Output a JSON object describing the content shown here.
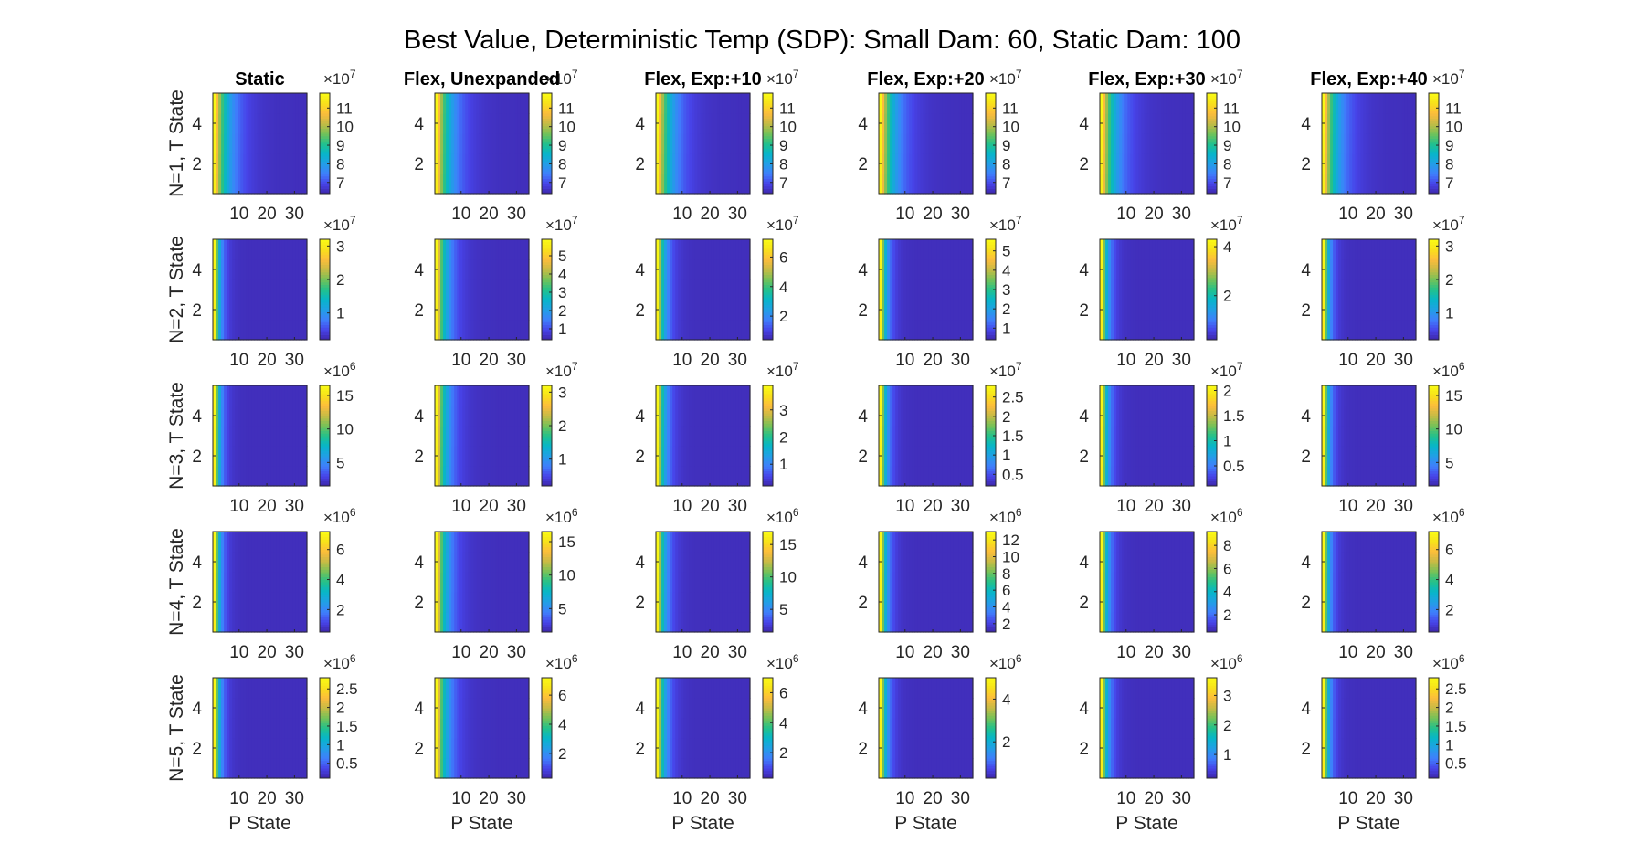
{
  "figure": {
    "title": "Best Value, Deterministic Temp (SDP): Small Dam: 60, Static Dam: 100"
  },
  "colormap": [
    "#3e26a8",
    "#4744e9",
    "#3f7ffc",
    "#219fe6",
    "#07b6c9",
    "#22c18b",
    "#74c258",
    "#c6bb45",
    "#fcbc3c",
    "#f8e11b",
    "#f9fb15"
  ],
  "chart_data": {
    "type": "heatmap",
    "columns": [
      "Static",
      "Flex, Unexpanded",
      "Flex, Exp:+10",
      "Flex, Exp:+20",
      "Flex, Exp:+30",
      "Flex, Exp:+40"
    ],
    "rows": [
      "N=1, T State",
      "N=2, T State",
      "N=3, T State",
      "N=4, T State",
      "N=5, T State"
    ],
    "xlabel": "P State",
    "x_ticks": [
      "10",
      "20",
      "30"
    ],
    "y_ticks": [
      "2",
      "4"
    ],
    "x_range": [
      1,
      34
    ],
    "y_range": [
      0.5,
      5.5
    ],
    "panels": [
      [
        {
          "exponent": "7",
          "clim": [
            6.4,
            11.8
          ],
          "ticks": [
            "7",
            "8",
            "9",
            "10",
            "11"
          ],
          "decay": 0.22
        },
        {
          "exponent": "7",
          "clim": [
            6.4,
            11.8
          ],
          "ticks": [
            "7",
            "8",
            "9",
            "10",
            "11"
          ],
          "decay": 0.22
        },
        {
          "exponent": "7",
          "clim": [
            6.4,
            11.8
          ],
          "ticks": [
            "7",
            "8",
            "9",
            "10",
            "11"
          ],
          "decay": 0.22
        },
        {
          "exponent": "7",
          "clim": [
            6.4,
            11.8
          ],
          "ticks": [
            "7",
            "8",
            "9",
            "10",
            "11"
          ],
          "decay": 0.22
        },
        {
          "exponent": "7",
          "clim": [
            6.4,
            11.8
          ],
          "ticks": [
            "7",
            "8",
            "9",
            "10",
            "11"
          ],
          "decay": 0.22
        },
        {
          "exponent": "7",
          "clim": [
            6.4,
            11.8
          ],
          "ticks": [
            "7",
            "8",
            "9",
            "10",
            "11"
          ],
          "decay": 0.22
        }
      ],
      [
        {
          "exponent": "7",
          "clim": [
            0.2,
            3.2
          ],
          "ticks": [
            "1",
            "2",
            "3"
          ],
          "decay": 0.55
        },
        {
          "exponent": "7",
          "clim": [
            0.4,
            5.9
          ],
          "ticks": [
            "1",
            "2",
            "3",
            "4",
            "5"
          ],
          "decay": 0.3
        },
        {
          "exponent": "7",
          "clim": [
            0.4,
            7.2
          ],
          "ticks": [
            "2",
            "4",
            "6"
          ],
          "decay": 0.42
        },
        {
          "exponent": "7",
          "clim": [
            0.4,
            5.6
          ],
          "ticks": [
            "1",
            "2",
            "3",
            "4",
            "5"
          ],
          "decay": 0.5
        },
        {
          "exponent": "7",
          "clim": [
            0.2,
            4.3
          ],
          "ticks": [
            "2",
            "4"
          ],
          "decay": 0.5
        },
        {
          "exponent": "7",
          "clim": [
            0.2,
            3.2
          ],
          "ticks": [
            "1",
            "2",
            "3"
          ],
          "decay": 0.55
        }
      ],
      [
        {
          "exponent": "6",
          "clim": [
            1.5,
            16.5
          ],
          "ticks": [
            "5",
            "10",
            "15"
          ],
          "decay": 0.55
        },
        {
          "exponent": "7",
          "clim": [
            0.2,
            3.2
          ],
          "ticks": [
            "1",
            "2",
            "3"
          ],
          "decay": 0.3
        },
        {
          "exponent": "7",
          "clim": [
            0.2,
            3.9
          ],
          "ticks": [
            "1",
            "2",
            "3"
          ],
          "decay": 0.42
        },
        {
          "exponent": "7",
          "clim": [
            0.2,
            2.8
          ],
          "ticks": [
            "0.5",
            "1",
            "1.5",
            "2",
            "2.5"
          ],
          "decay": 0.5
        },
        {
          "exponent": "7",
          "clim": [
            0.1,
            2.1
          ],
          "ticks": [
            "0.5",
            "1",
            "1.5",
            "2"
          ],
          "decay": 0.5
        },
        {
          "exponent": "6",
          "clim": [
            1.5,
            16.5
          ],
          "ticks": [
            "5",
            "10",
            "15"
          ],
          "decay": 0.55
        }
      ],
      [
        {
          "exponent": "6",
          "clim": [
            0.5,
            7.2
          ],
          "ticks": [
            "2",
            "4",
            "6"
          ],
          "decay": 0.55
        },
        {
          "exponent": "6",
          "clim": [
            1.5,
            16.5
          ],
          "ticks": [
            "5",
            "10",
            "15"
          ],
          "decay": 0.3
        },
        {
          "exponent": "6",
          "clim": [
            1.5,
            17.0
          ],
          "ticks": [
            "5",
            "10",
            "15"
          ],
          "decay": 0.42
        },
        {
          "exponent": "6",
          "clim": [
            1.0,
            13.0
          ],
          "ticks": [
            "2",
            "4",
            "6",
            "8",
            "10",
            "12"
          ],
          "decay": 0.5
        },
        {
          "exponent": "6",
          "clim": [
            0.5,
            9.2
          ],
          "ticks": [
            "2",
            "4",
            "6",
            "8"
          ],
          "decay": 0.5
        },
        {
          "exponent": "6",
          "clim": [
            0.5,
            7.2
          ],
          "ticks": [
            "2",
            "4",
            "6"
          ],
          "decay": 0.55
        }
      ],
      [
        {
          "exponent": "6",
          "clim": [
            0.1,
            2.8
          ],
          "ticks": [
            "0.5",
            "1",
            "1.5",
            "2",
            "2.5"
          ],
          "decay": 0.55
        },
        {
          "exponent": "6",
          "clim": [
            0.3,
            7.2
          ],
          "ticks": [
            "2",
            "4",
            "6"
          ],
          "decay": 0.3
        },
        {
          "exponent": "6",
          "clim": [
            0.3,
            7.0
          ],
          "ticks": [
            "2",
            "4",
            "6"
          ],
          "decay": 0.42
        },
        {
          "exponent": "6",
          "clim": [
            0.3,
            5.0
          ],
          "ticks": [
            "2",
            "4"
          ],
          "decay": 0.5
        },
        {
          "exponent": "6",
          "clim": [
            0.2,
            3.6
          ],
          "ticks": [
            "1",
            "2",
            "3"
          ],
          "decay": 0.5
        },
        {
          "exponent": "6",
          "clim": [
            0.1,
            2.8
          ],
          "ticks": [
            "0.5",
            "1",
            "1.5",
            "2",
            "2.5"
          ],
          "decay": 0.55
        }
      ]
    ]
  }
}
